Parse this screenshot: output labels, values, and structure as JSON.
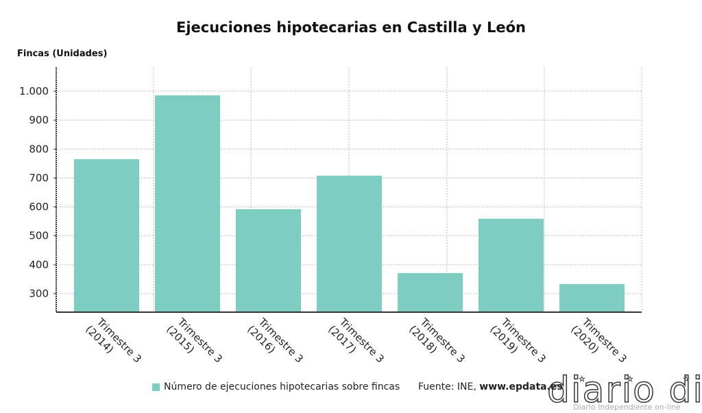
{
  "chart_data": {
    "type": "bar",
    "title": "Ejecuciones hipotecarias en Castilla y León",
    "ylabel": "Fincas (Unidades)",
    "xlabel": "",
    "categories": [
      [
        "Trimestre 3",
        "(2014)"
      ],
      [
        "Trimestre 3",
        "(2015)"
      ],
      [
        "Trimestre 3",
        "(2016)"
      ],
      [
        "Trimestre 3",
        "(2017)"
      ],
      [
        "Trimestre 3",
        "(2018)"
      ],
      [
        "Trimestre 3",
        "(2019)"
      ],
      [
        "Trimestre 3",
        "(2020)"
      ]
    ],
    "series": [
      {
        "name": "Número de ejecuciones hipotecarias sobre fincas",
        "values": [
          765,
          986,
          592,
          708,
          371,
          559,
          333
        ],
        "color": "#7ecdc3"
      }
    ],
    "yticks": [
      300,
      400,
      500,
      600,
      700,
      800,
      900,
      1000
    ],
    "ytick_labels": [
      "300",
      "400",
      "500",
      "600",
      "700",
      "800",
      "900",
      "1.000"
    ],
    "ylim": [
      236,
      1083
    ],
    "grid": true,
    "legend": "bottom"
  },
  "source": {
    "label": "Fuente: INE, ",
    "site": "www.epdata.es"
  },
  "watermark": {
    "logo": "diario dia",
    "tagline": "Diario Independiente on-line"
  }
}
